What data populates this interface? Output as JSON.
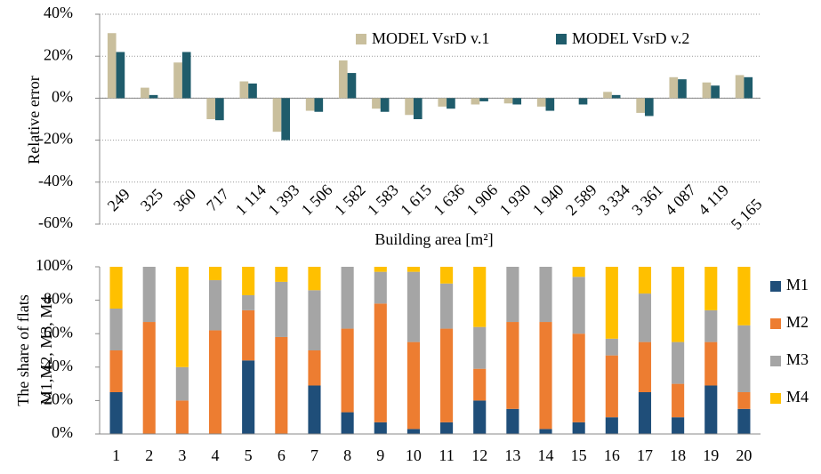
{
  "chart_data": [
    {
      "type": "bar",
      "x_label": "Building area [m²]",
      "y_label": "Relative error",
      "categories": [
        "249",
        "325",
        "360",
        "717",
        "1 114",
        "1 393",
        "1 506",
        "1 582",
        "1 583",
        "1 615",
        "1 636",
        "1 906",
        "1 930",
        "1 940",
        "2 589",
        "3 334",
        "3 361",
        "4 087",
        "4 119",
        "5 165"
      ],
      "series": [
        {
          "name": "MODEL VsrD v.1",
          "color": "#c9bf9d",
          "values": [
            31,
            5,
            17,
            -10,
            8,
            -16,
            -6,
            18,
            -5,
            -8,
            -4,
            -3,
            -2.5,
            -4,
            0,
            3,
            -7,
            10,
            7.5,
            11
          ]
        },
        {
          "name": "MODEL VsrD v.2",
          "color": "#1f5c6b",
          "values": [
            22,
            1.5,
            22,
            -10.5,
            7,
            -20,
            -6.5,
            12,
            -6.5,
            -10,
            -5,
            -1.5,
            -3,
            -6,
            -3,
            1.5,
            -8.5,
            9,
            6,
            10
          ]
        }
      ],
      "ylim": [
        -60,
        40
      ],
      "yticks": [
        {
          "value": -60,
          "label": "-60%"
        },
        {
          "value": -40,
          "label": "-40%"
        },
        {
          "value": -20,
          "label": "-20%"
        },
        {
          "value": 0,
          "label": "0%"
        },
        {
          "value": 20,
          "label": "20%"
        },
        {
          "value": 40,
          "label": "40%"
        }
      ],
      "grid": true,
      "legend": "upper right"
    },
    {
      "type": "stacked_bar",
      "y_label": [
        "The share of flats",
        "M1,M2,  M3,  M4"
      ],
      "categories": [
        "1",
        "2",
        "3",
        "4",
        "5",
        "6",
        "7",
        "8",
        "9",
        "10",
        "11",
        "12",
        "13",
        "14",
        "15",
        "16",
        "17",
        "18",
        "19",
        "20"
      ],
      "series": [
        {
          "name": "M1",
          "color": "#1f4e79",
          "values": [
            25,
            0,
            0,
            0,
            44,
            0,
            29,
            13,
            7,
            3,
            7,
            20,
            15,
            3,
            7,
            10,
            25,
            10,
            29,
            15
          ]
        },
        {
          "name": "M2",
          "color": "#ed7d31",
          "values": [
            25,
            67,
            20,
            62,
            30,
            58,
            21,
            50,
            71,
            52,
            56,
            19,
            52,
            64,
            53,
            37,
            30,
            20,
            26,
            10
          ]
        },
        {
          "name": "M3",
          "color": "#a5a5a5",
          "values": [
            25,
            33,
            20,
            30,
            9,
            33,
            36,
            37,
            19,
            42,
            27,
            25,
            33,
            33,
            34,
            10,
            29,
            25,
            19,
            40
          ]
        },
        {
          "name": "M4",
          "color": "#ffc000",
          "values": [
            25,
            0,
            60,
            8,
            17,
            9,
            14,
            0,
            3,
            3,
            10,
            36,
            0,
            0,
            6,
            43,
            16,
            45,
            26,
            35
          ]
        }
      ],
      "ylim": [
        0,
        100
      ],
      "yticks": [
        {
          "value": 0,
          "label": "0%"
        },
        {
          "value": 20,
          "label": "20%"
        },
        {
          "value": 40,
          "label": "40%"
        },
        {
          "value": 60,
          "label": "60%"
        },
        {
          "value": 80,
          "label": "80%"
        },
        {
          "value": 100,
          "label": "100%"
        }
      ],
      "grid": false,
      "legend": "right"
    }
  ]
}
